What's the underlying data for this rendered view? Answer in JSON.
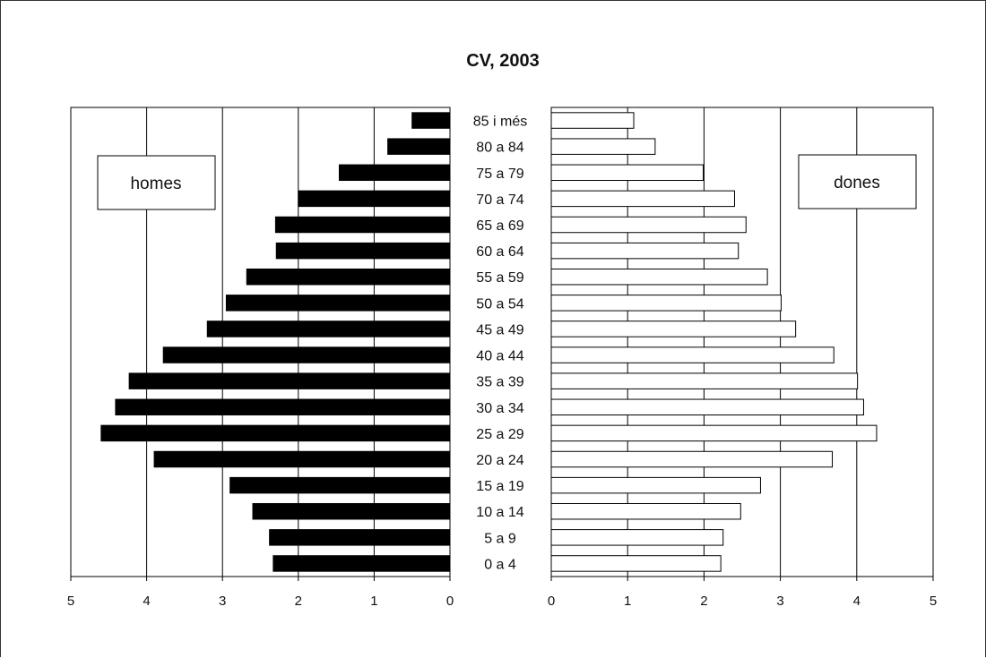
{
  "chart_data": {
    "type": "bar",
    "orientation": "horizontal",
    "layout": "population-pyramid",
    "title": "CV, 2003",
    "categories": [
      "85 i més",
      "80 a 84",
      "75 a 79",
      "70 a 74",
      "65 a 69",
      "60 a 64",
      "55 a 59",
      "50 a 54",
      "45 a 49",
      "40 a 44",
      "35 a 39",
      "30 a 34",
      "25 a 29",
      "20 a 24",
      "15 a 19",
      "10 a 14",
      "5 a 9",
      "0 a 4"
    ],
    "series": [
      {
        "name": "homes",
        "side": "left",
        "color": "#000000",
        "values": [
          0.5,
          0.82,
          1.46,
          2.0,
          2.3,
          2.29,
          2.68,
          2.95,
          3.2,
          3.78,
          4.23,
          4.41,
          4.6,
          3.9,
          2.9,
          2.6,
          2.38,
          2.33
        ]
      },
      {
        "name": "dones",
        "side": "right",
        "color": "#ffffff",
        "values": [
          1.08,
          1.36,
          1.99,
          2.4,
          2.55,
          2.45,
          2.83,
          3.01,
          3.2,
          3.7,
          4.01,
          4.09,
          4.26,
          3.68,
          2.74,
          2.48,
          2.25,
          2.22
        ]
      }
    ],
    "xlim": [
      0,
      5
    ],
    "xticks": [
      0,
      1,
      2,
      3,
      4,
      5
    ],
    "grid": true,
    "legend": {
      "placement": "inside-top-outer",
      "left_label": "homes",
      "right_label": "dones"
    }
  }
}
